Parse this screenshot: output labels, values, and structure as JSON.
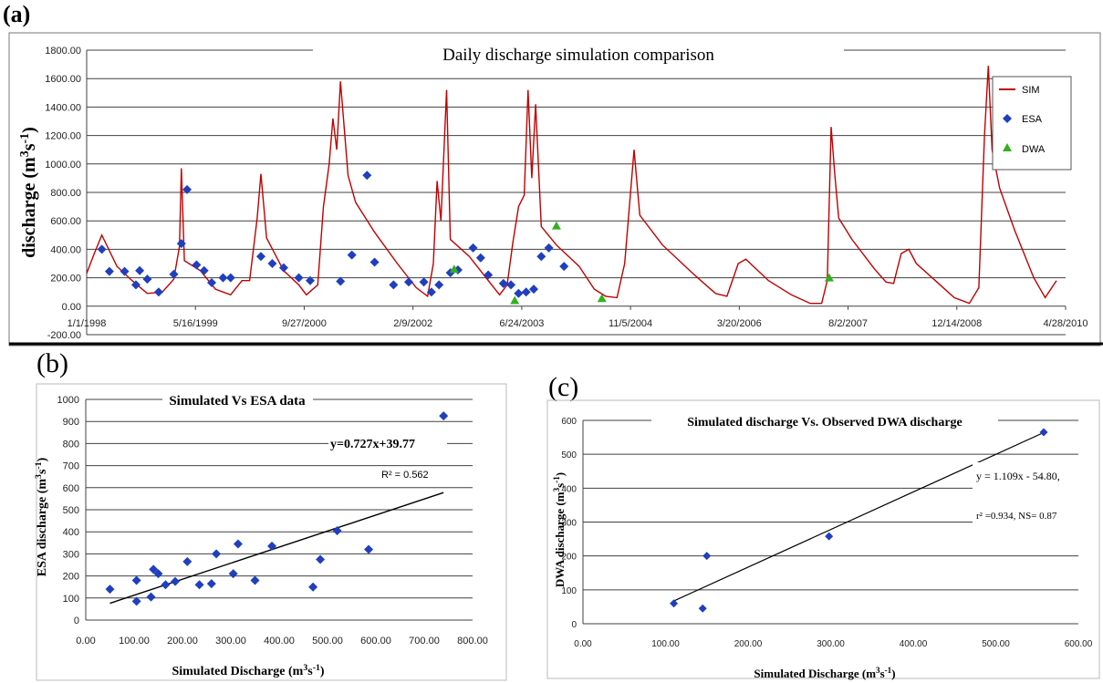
{
  "panels": {
    "a": "(a)",
    "b": "(b)",
    "c": "(c)"
  },
  "colors": {
    "sim": "#c00000",
    "esa": "#1f3fbf",
    "dwa": "#33b020",
    "grid": "#404040",
    "trend": "#000000"
  },
  "chart_data": [
    {
      "id": "a",
      "type": "line",
      "title": "Daily discharge simulation comparison",
      "xlabel": "",
      "ylabel": "discharge (m³s⁻¹)",
      "ylabel_parts": {
        "base": "discharge (m",
        "sup1": "3",
        "mid": "s",
        "sup2": "-1",
        "end": ")"
      },
      "ylim": [
        -200,
        1800
      ],
      "yticks": [
        "-200.00",
        "0.00",
        "200.00",
        "400.00",
        "600.00",
        "800.00",
        "1000.00",
        "1200.00",
        "1400.00",
        "1600.00",
        "1800.00"
      ],
      "xticks": [
        "1/1/1998",
        "5/16/1999",
        "9/27/2000",
        "2/9/2002",
        "6/24/2003",
        "11/5/2004",
        "3/20/2006",
        "8/2/2007",
        "12/14/2008",
        "4/28/2010"
      ],
      "grid": true,
      "legend_position": "right",
      "legend": [
        "SIM",
        "ESA",
        "DWA"
      ],
      "series": [
        {
          "name": "SIM",
          "kind": "line",
          "points": [
            [
              0,
              230
            ],
            [
              20,
              370
            ],
            [
              40,
              500
            ],
            [
              80,
              280
            ],
            [
              120,
              180
            ],
            [
              160,
              90
            ],
            [
              200,
              100
            ],
            [
              230,
              190
            ],
            [
              245,
              420
            ],
            [
              250,
              970
            ],
            [
              258,
              320
            ],
            [
              300,
              250
            ],
            [
              340,
              120
            ],
            [
              380,
              80
            ],
            [
              410,
              180
            ],
            [
              430,
              180
            ],
            [
              450,
              620
            ],
            [
              460,
              930
            ],
            [
              475,
              480
            ],
            [
              520,
              250
            ],
            [
              560,
              150
            ],
            [
              580,
              80
            ],
            [
              610,
              150
            ],
            [
              625,
              700
            ],
            [
              640,
              1000
            ],
            [
              650,
              1320
            ],
            [
              660,
              1100
            ],
            [
              670,
              1580
            ],
            [
              690,
              920
            ],
            [
              710,
              730
            ],
            [
              760,
              520
            ],
            [
              820,
              300
            ],
            [
              870,
              130
            ],
            [
              900,
              70
            ],
            [
              915,
              300
            ],
            [
              925,
              880
            ],
            [
              935,
              600
            ],
            [
              950,
              1520
            ],
            [
              960,
              470
            ],
            [
              1010,
              350
            ],
            [
              1060,
              180
            ],
            [
              1090,
              80
            ],
            [
              1110,
              150
            ],
            [
              1125,
              450
            ],
            [
              1140,
              700
            ],
            [
              1155,
              780
            ],
            [
              1165,
              1520
            ],
            [
              1175,
              900
            ],
            [
              1185,
              1420
            ],
            [
              1200,
              560
            ],
            [
              1240,
              430
            ],
            [
              1300,
              280
            ],
            [
              1340,
              120
            ],
            [
              1370,
              70
            ],
            [
              1400,
              60
            ],
            [
              1420,
              300
            ],
            [
              1435,
              780
            ],
            [
              1445,
              1100
            ],
            [
              1460,
              640
            ],
            [
              1520,
              430
            ],
            [
              1600,
              230
            ],
            [
              1660,
              90
            ],
            [
              1690,
              70
            ],
            [
              1720,
              300
            ],
            [
              1740,
              330
            ],
            [
              1760,
              280
            ],
            [
              1800,
              180
            ],
            [
              1860,
              80
            ],
            [
              1910,
              20
            ],
            [
              1940,
              20
            ],
            [
              1955,
              180
            ],
            [
              1965,
              1260
            ],
            [
              1975,
              920
            ],
            [
              1985,
              620
            ],
            [
              2020,
              470
            ],
            [
              2080,
              260
            ],
            [
              2110,
              170
            ],
            [
              2130,
              160
            ],
            [
              2150,
              370
            ],
            [
              2170,
              400
            ],
            [
              2190,
              300
            ],
            [
              2240,
              180
            ],
            [
              2290,
              60
            ],
            [
              2330,
              20
            ],
            [
              2355,
              130
            ],
            [
              2370,
              1200
            ],
            [
              2380,
              1690
            ],
            [
              2390,
              1100
            ],
            [
              2410,
              830
            ],
            [
              2450,
              530
            ],
            [
              2500,
              200
            ],
            [
              2530,
              60
            ],
            [
              2560,
              180
            ]
          ]
        },
        {
          "name": "ESA",
          "kind": "marker",
          "points": [
            [
              40,
              400
            ],
            [
              60,
              245
            ],
            [
              100,
              245
            ],
            [
              130,
              150
            ],
            [
              140,
              250
            ],
            [
              160,
              190
            ],
            [
              190,
              100
            ],
            [
              230,
              225
            ],
            [
              250,
              440
            ],
            [
              265,
              820
            ],
            [
              290,
              290
            ],
            [
              310,
              250
            ],
            [
              330,
              165
            ],
            [
              360,
              200
            ],
            [
              380,
              200
            ],
            [
              460,
              350
            ],
            [
              490,
              300
            ],
            [
              520,
              270
            ],
            [
              560,
              200
            ],
            [
              590,
              180
            ],
            [
              670,
              175
            ],
            [
              700,
              360
            ],
            [
              740,
              920
            ],
            [
              760,
              310
            ],
            [
              810,
              150
            ],
            [
              850,
              170
            ],
            [
              890,
              170
            ],
            [
              910,
              100
            ],
            [
              930,
              150
            ],
            [
              960,
              235
            ],
            [
              980,
              255
            ],
            [
              1020,
              410
            ],
            [
              1040,
              340
            ],
            [
              1060,
              220
            ],
            [
              1100,
              160
            ],
            [
              1120,
              150
            ],
            [
              1140,
              90
            ],
            [
              1160,
              100
            ],
            [
              1180,
              120
            ],
            [
              1200,
              350
            ],
            [
              1220,
              410
            ],
            [
              1260,
              280
            ]
          ]
        },
        {
          "name": "DWA",
          "kind": "marker",
          "points": [
            [
              970,
              260
            ],
            [
              1130,
              40
            ],
            [
              1240,
              565
            ],
            [
              1360,
              55
            ],
            [
              1960,
              200
            ]
          ]
        }
      ]
    },
    {
      "id": "b",
      "type": "scatter",
      "title": "Simulated Vs ESA data",
      "xlabel": "Simulated Discharge (m³s⁻¹)",
      "xlabel_parts": {
        "base": "Simulated Discharge (m",
        "sup1": "3",
        "mid": "s",
        "sup2": "-1",
        "end": ")"
      },
      "ylabel": "ESA discharge (m³s⁻¹)",
      "ylabel_parts": {
        "base": "ESA discharge (m",
        "sup1": "3",
        "mid": "s",
        "sup2": "-1",
        "end": ")"
      },
      "xlim": [
        0,
        800
      ],
      "ylim": [
        0,
        1000
      ],
      "xticks": [
        "0.00",
        "100.00",
        "200.00",
        "300.00",
        "400.00",
        "500.00",
        "600.00",
        "700.00",
        "800.00"
      ],
      "yticks": [
        "0",
        "100",
        "200",
        "300",
        "400",
        "500",
        "600",
        "700",
        "800",
        "900",
        "1000"
      ],
      "grid": true,
      "equation": "y=0.727x+39.77",
      "r2": "R² = 0.562",
      "trendline": {
        "slope": 0.727,
        "intercept": 39.77,
        "x_range": [
          50,
          740
        ]
      },
      "points": [
        [
          50,
          140
        ],
        [
          105,
          85
        ],
        [
          105,
          180
        ],
        [
          135,
          105
        ],
        [
          140,
          230
        ],
        [
          150,
          210
        ],
        [
          165,
          160
        ],
        [
          185,
          175
        ],
        [
          210,
          265
        ],
        [
          235,
          160
        ],
        [
          260,
          165
        ],
        [
          270,
          300
        ],
        [
          305,
          210
        ],
        [
          315,
          345
        ],
        [
          350,
          180
        ],
        [
          385,
          335
        ],
        [
          470,
          150
        ],
        [
          485,
          275
        ],
        [
          520,
          405
        ],
        [
          585,
          320
        ],
        [
          740,
          925
        ]
      ]
    },
    {
      "id": "c",
      "type": "scatter",
      "title": "Simulated discharge Vs. Observed DWA discharge",
      "xlabel": "Simulated Discharge (m³s⁻¹)",
      "xlabel_parts": {
        "base": "Simulated Discharge (m",
        "sup1": "3",
        "mid": "s",
        "sup2": "-1",
        "end": ")"
      },
      "ylabel": "DWA discharge (m³s⁻¹)",
      "ylabel_parts": {
        "base": "DWA discharge (m",
        "sup1": "3",
        "mid": "s",
        "sup2": "-1",
        "end": ")"
      },
      "xlim": [
        0,
        600
      ],
      "ylim": [
        0,
        600
      ],
      "xticks": [
        "0.00",
        "100.00",
        "200.00",
        "300.00",
        "400.00",
        "500.00",
        "600.00"
      ],
      "yticks": [
        "0",
        "100",
        "200",
        "300",
        "400",
        "500",
        "600"
      ],
      "grid": true,
      "equation": "y = 1.109x - 54.80,",
      "r2": "r² =0.934, NS= 0.87",
      "trendline": {
        "slope": 1.109,
        "intercept": -54.8,
        "x_range": [
          110,
          560
        ]
      },
      "points": [
        [
          110,
          60
        ],
        [
          145,
          45
        ],
        [
          150,
          200
        ],
        [
          298,
          258
        ],
        [
          558,
          565
        ]
      ]
    }
  ]
}
